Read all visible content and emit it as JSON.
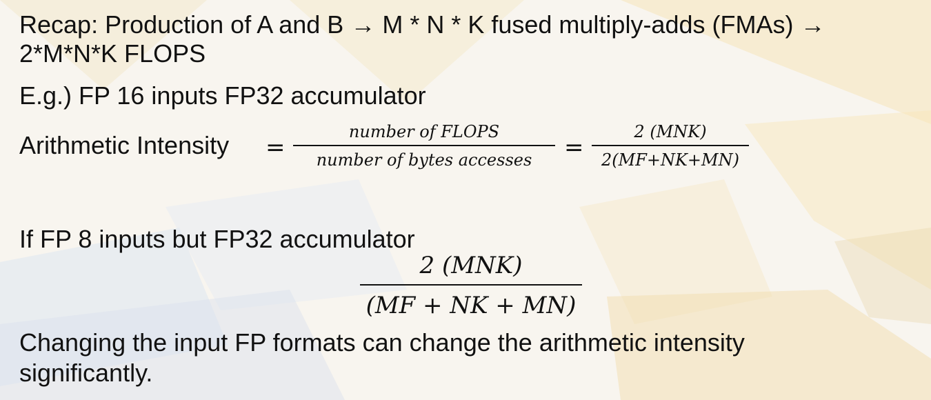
{
  "slide": {
    "recap_line1": "Recap: Production of A and B → M * N * K fused multiply-adds (FMAs) →",
    "recap_line2": "2*M*N*K FLOPS",
    "example_fp16": "E.g.) FP 16 inputs FP32 accumulator",
    "ai_label": "Arithmetic Intensity",
    "equals": "=",
    "ratio_numerator": "number of FLOPS",
    "ratio_denominator": "number of bytes accesses",
    "fp16_numerator": "2  (MNK)",
    "fp16_denominator": "2(MF+NK+MN)",
    "example_fp8": "If FP 8 inputs but FP32 accumulator",
    "fp8_numerator": "2  (MNK)",
    "fp8_denominator": "(MF + NK + MN)",
    "conclusion_line1": "Changing the input FP formats can change the arithmetic intensity",
    "conclusion_line2": "significantly."
  },
  "colors": {
    "text": "#111111",
    "background": "#f7f4ee",
    "accent_yellow": "#f6e6b4",
    "accent_blue": "#dfe7f3"
  }
}
